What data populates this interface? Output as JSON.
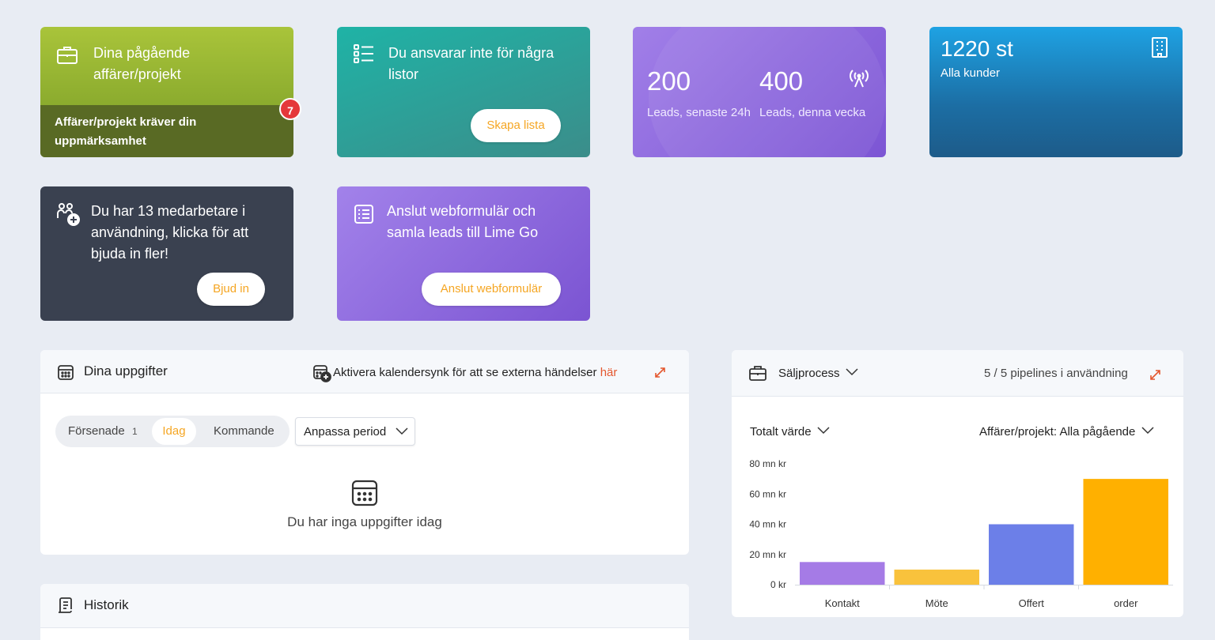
{
  "cards": {
    "projects": {
      "title": "Dina pågående affärer/projekt",
      "subtitle": "Affärer/projekt kräver din uppmärksamhet",
      "badge": "7",
      "icon": "briefcase-icon"
    },
    "lists": {
      "title": "Du ansvarar inte för några listor",
      "button": "Skapa lista",
      "icon": "list-icon"
    },
    "leads": {
      "value_24h": "200",
      "label_24h": "Leads, senaste 24h",
      "value_week": "400",
      "label_week": "Leads, denna vecka",
      "icon": "broadcast-icon"
    },
    "customers": {
      "value": "1220 st",
      "label": "Alla kunder",
      "icon": "building-icon"
    },
    "colleagues": {
      "title": "Du har 13 medarbetare i användning, klicka för att bjuda in fler!",
      "button": "Bjud in",
      "icon": "users-plus-icon"
    },
    "webform": {
      "title": "Anslut webformulär och samla leads till Lime Go",
      "button": "Anslut webformulär",
      "icon": "form-icon"
    }
  },
  "tasks": {
    "title": "Dina uppgifter",
    "calendar_sync_text": "Aktivera kalendersynk för att se externa händelser",
    "calendar_sync_link": "här",
    "tabs": {
      "overdue": "Försenade",
      "overdue_count": "1",
      "today": "Idag",
      "upcoming": "Kommande"
    },
    "period_dropdown": "Anpassa period",
    "empty_text": "Du har inga uppgifter idag"
  },
  "history": {
    "title": "Historik"
  },
  "sales": {
    "title": "Säljprocess",
    "pipelines_text": "5 / 5 pipelines i användning",
    "value_dropdown": "Totalt värde",
    "filter_dropdown": "Affärer/projekt: Alla pågående"
  },
  "colors": {
    "accent": "#f5a623",
    "link": "#e4572e"
  },
  "chart_data": {
    "type": "bar",
    "categories": [
      "Kontakt",
      "Möte",
      "Offert",
      "order"
    ],
    "values": [
      15,
      10,
      40,
      70
    ],
    "colors": [
      "#a57be6",
      "#f9c23c",
      "#6c7fe8",
      "#ffb000"
    ],
    "ytick_labels": [
      "0 kr",
      "20 mn kr",
      "40 mn kr",
      "60 mn kr",
      "80 mn kr"
    ],
    "ylim": [
      0,
      80
    ],
    "unit": "mn kr",
    "grid": false
  }
}
